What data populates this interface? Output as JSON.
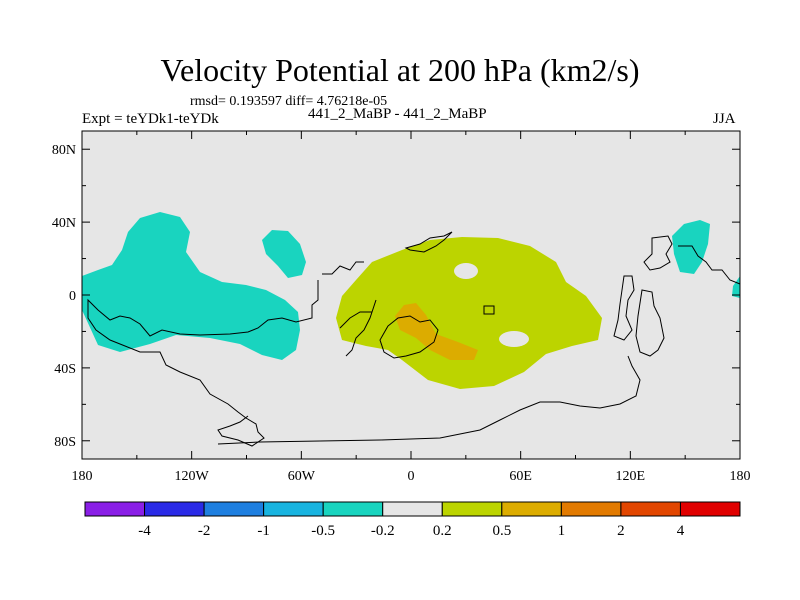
{
  "title": "Velocity Potential at 200 hPa (km2/s)",
  "stats": "rmsd= 0.193597 diff= 4.76218e-05",
  "left_label": "Expt = teYDk1-teYDk",
  "center_label": "441_2_MaBP - 441_2_MaBP",
  "right_label": "JJA",
  "axes": {
    "lat_ticks": [
      "80N",
      "40N",
      "0",
      "40S",
      "80S"
    ],
    "lat_values": [
      80,
      40,
      0,
      -40,
      -80
    ],
    "lon_ticks": [
      "180",
      "120W",
      "60W",
      "0",
      "60E",
      "120E",
      "180"
    ],
    "lon_values": [
      -180,
      -120,
      -60,
      0,
      60,
      120,
      180
    ],
    "lat_range": [
      -90,
      90
    ],
    "lon_range": [
      -180,
      180
    ]
  },
  "colorbar": {
    "levels": [
      "-4",
      "-2",
      "-1",
      "-0.5",
      "-0.2",
      "0.2",
      "0.5",
      "1",
      "2",
      "4"
    ],
    "colors": [
      "#8a1fe6",
      "#2a2ae6",
      "#1e7fe0",
      "#18b4e0",
      "#19d4bf",
      "#e6e6e6",
      "#bcd400",
      "#dcac00",
      "#e27a00",
      "#e24600",
      "#e00000"
    ]
  },
  "colors": {
    "background_field": "#e6e6e6",
    "negative_anomaly": "#19d4bf",
    "positive_anomaly": "#bcd400",
    "strong_positive": "#dcac00"
  }
}
